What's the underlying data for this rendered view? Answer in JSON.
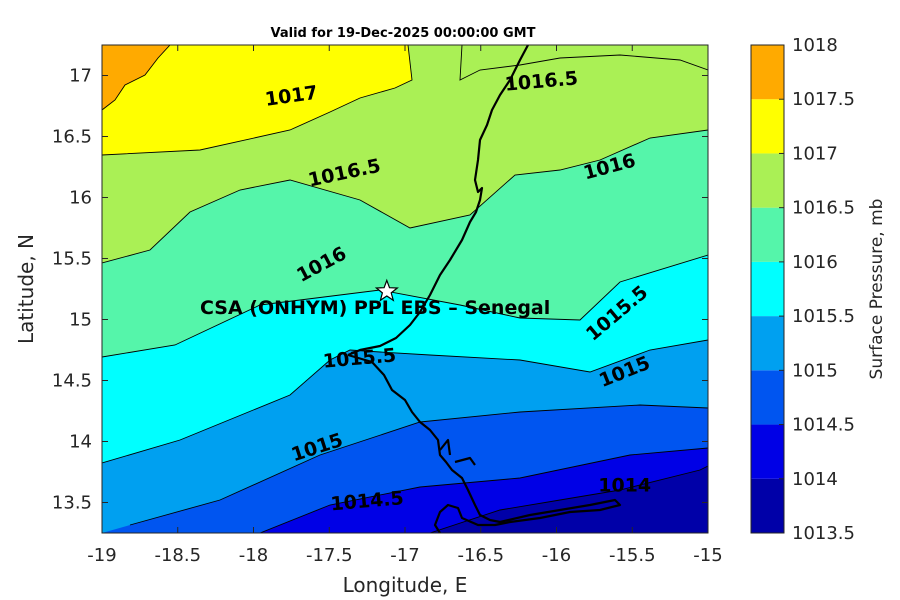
{
  "title": "Valid for 19-Dec-2025 00:00:00 GMT",
  "xlabel": "Longitude, E",
  "ylabel": "Latitude, N",
  "xticks": [
    -19,
    -18.5,
    -18,
    -17.5,
    -17,
    -16.5,
    -16,
    -15.5,
    -15
  ],
  "yticks": [
    13.5,
    14,
    14.5,
    15,
    15.5,
    16,
    16.5,
    17
  ],
  "xlim": [
    -19,
    -15
  ],
  "ylim": [
    13.25,
    17.25
  ],
  "station": {
    "name": "CSA (ONHYM) PPL EBS  – Senegal",
    "lon": -17.12,
    "lat": 15.23
  },
  "contour_labels": [
    {
      "text": "1017",
      "lon": -17.75,
      "lat": 16.83,
      "angle": -8
    },
    {
      "text": "1016.5",
      "lon": -16.1,
      "lat": 16.95,
      "angle": -5
    },
    {
      "text": "1016.5",
      "lon": -17.4,
      "lat": 16.2,
      "angle": -12
    },
    {
      "text": "1016",
      "lon": -15.65,
      "lat": 16.25,
      "angle": -15
    },
    {
      "text": "1016",
      "lon": -17.55,
      "lat": 15.45,
      "angle": -28
    },
    {
      "text": "1015.5",
      "lon": -15.6,
      "lat": 15.05,
      "angle": -40
    },
    {
      "text": "1015.5",
      "lon": -17.3,
      "lat": 14.68,
      "angle": -5
    },
    {
      "text": "1015",
      "lon": -15.55,
      "lat": 14.57,
      "angle": -22
    },
    {
      "text": "1015",
      "lon": -17.58,
      "lat": 13.95,
      "angle": -18
    },
    {
      "text": "1014.5",
      "lon": -17.25,
      "lat": 13.51,
      "angle": -5
    },
    {
      "text": "1014",
      "lon": -15.55,
      "lat": 13.64,
      "angle": 0
    }
  ],
  "colorbar": {
    "label": "Surface Pressure, mb",
    "levels": [
      1013.5,
      1014,
      1014.5,
      1015,
      1015.5,
      1016,
      1016.5,
      1017,
      1017.5,
      1018
    ],
    "tick_labels": [
      "1013.5",
      "1014",
      "1014.5",
      "1015",
      "1015.5",
      "1016",
      "1016.5",
      "1017",
      "1017.5",
      "1018"
    ],
    "colors": [
      "#0000a8",
      "#0000e6",
      "#0055f0",
      "#00a0f0",
      "#00ffff",
      "#55f5aa",
      "#aaf055",
      "#ffff00",
      "#ffaa00",
      "#ff5500"
    ]
  }
}
